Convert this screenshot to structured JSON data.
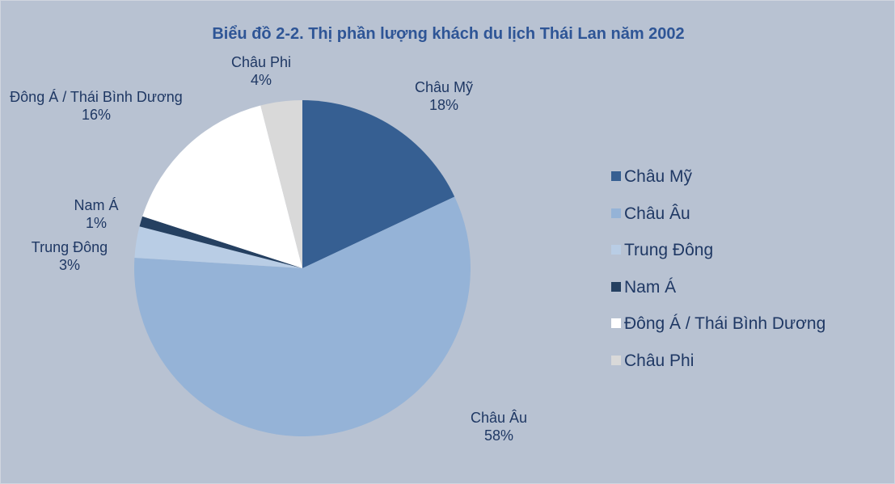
{
  "chart_data": {
    "type": "pie",
    "title": "Biểu đồ 2-2. Thị phần lượng khách du lịch Thái Lan năm 2002",
    "categories": [
      "Châu Mỹ",
      "Châu Âu",
      "Trung Đông",
      "Nam Á",
      "Đông Á / Thái Bình Dương",
      "Châu Phi"
    ],
    "values": [
      18,
      58,
      3,
      1,
      16,
      4
    ],
    "value_labels": [
      "18%",
      "58%",
      "3%",
      "1%",
      "16%",
      "4%"
    ],
    "colors": [
      "#365f92",
      "#95b3d7",
      "#b9cde5",
      "#254061",
      "#ffffff",
      "#d9d9d9"
    ],
    "legend": "right"
  }
}
